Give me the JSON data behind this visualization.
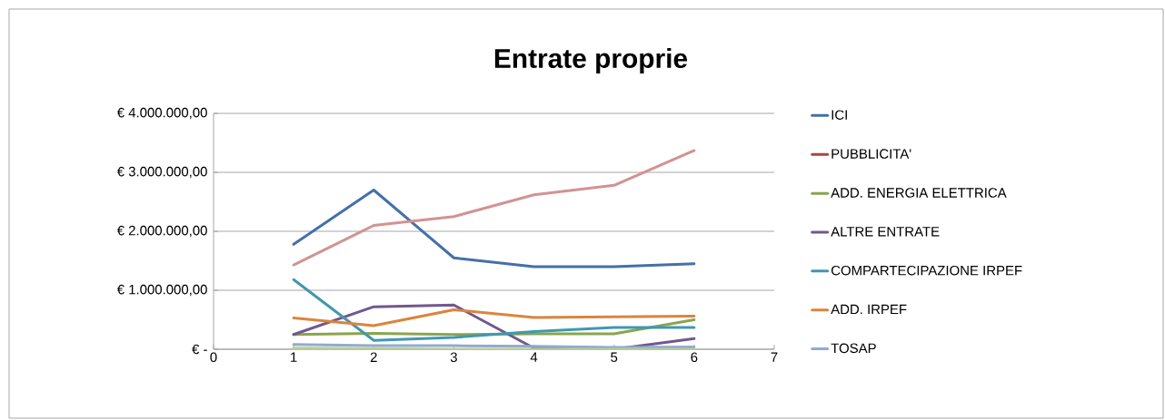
{
  "chart_data": {
    "type": "line",
    "title": "Entrate proprie",
    "x": [
      1,
      2,
      3,
      4,
      5,
      6
    ],
    "xlim": [
      0,
      7
    ],
    "xticks": [
      0,
      1,
      2,
      3,
      4,
      5,
      6,
      7
    ],
    "ylim": [
      0,
      4000000
    ],
    "yticks": [
      {
        "value": 0,
        "label": "€ -"
      },
      {
        "value": 1000000,
        "label": "€ 1.000.000,00"
      },
      {
        "value": 2000000,
        "label": "€ 2.000.000,00"
      },
      {
        "value": 3000000,
        "label": "€ 3.000.000,00"
      },
      {
        "value": 4000000,
        "label": "€ 4.000.000,00"
      }
    ],
    "grid": "y",
    "legend": "right",
    "marker": "none",
    "line_style": "solid",
    "series": [
      {
        "name": "ICI",
        "color": "#4470a8",
        "values": [
          1780000,
          2700000,
          1550000,
          1400000,
          1400000,
          1450000
        ]
      },
      {
        "name": "PUBBLICITA'",
        "color": "#aa4643",
        "values": [
          null,
          null,
          null,
          null,
          null,
          null
        ]
      },
      {
        "name": "ADD. ENERGIA ELETTRICA",
        "color": "#89a54e",
        "values": [
          250000,
          270000,
          250000,
          260000,
          260000,
          500000
        ]
      },
      {
        "name": "ALTRE ENTRATE",
        "color": "#71588f",
        "values": [
          250000,
          720000,
          750000,
          20000,
          0,
          180000
        ]
      },
      {
        "name": "COMPARTECIPAZIONE IRPEF",
        "color": "#4198af",
        "values": [
          1180000,
          150000,
          200000,
          300000,
          370000,
          370000
        ]
      },
      {
        "name": "ADD. IRPEF",
        "color": "#db843d",
        "values": [
          530000,
          400000,
          670000,
          540000,
          550000,
          560000
        ]
      },
      {
        "name": "TOSAP",
        "color": "#93a9cf",
        "values": [
          80000,
          60000,
          60000,
          50000,
          30000,
          40000
        ]
      },
      {
        "color": "#d19392",
        "values": [
          1430000,
          2100000,
          2250000,
          2620000,
          2780000,
          3370000
        ]
      },
      {
        "color": "#b9cd96",
        "values": [
          20000,
          10000,
          0,
          0,
          0,
          0
        ]
      }
    ]
  }
}
